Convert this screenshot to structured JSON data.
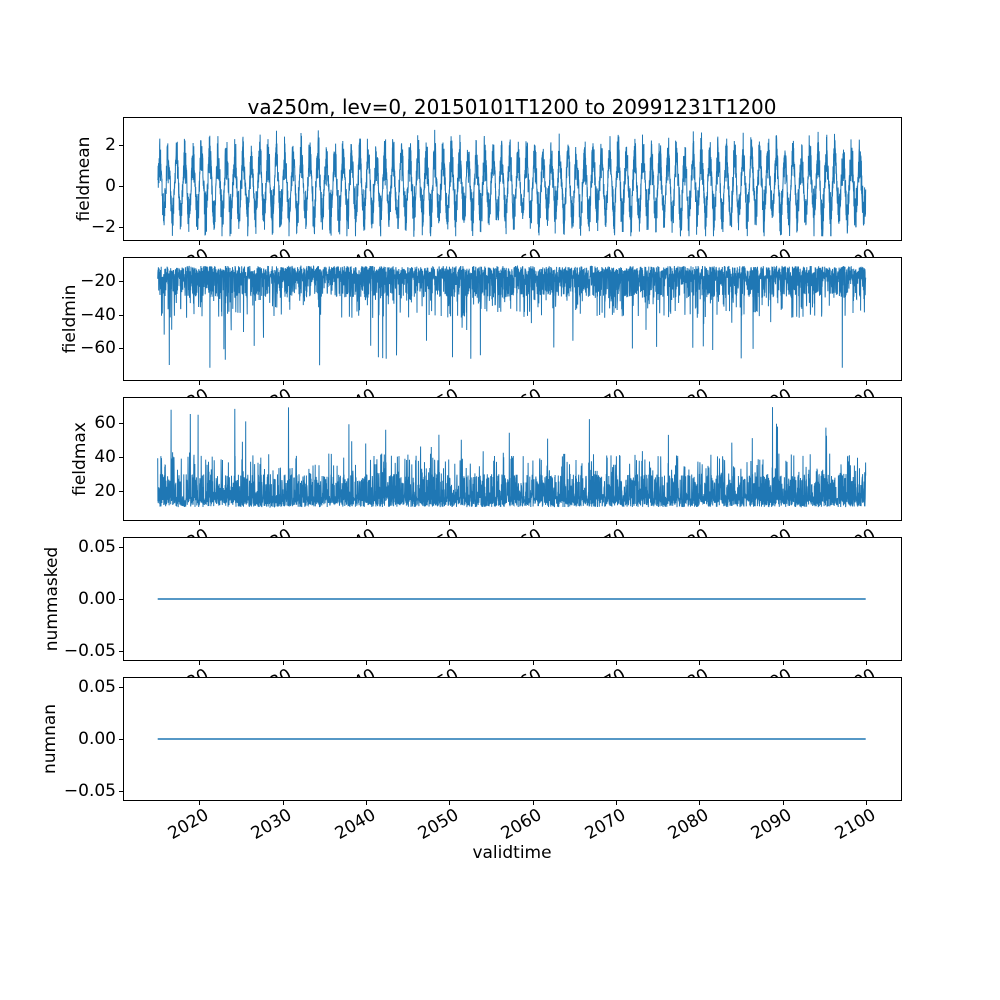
{
  "title": "va250m, lev=0, 20150101T1200 to 20991231T1200",
  "xlabel": "validtime",
  "colors": {
    "line": "#1f77b4",
    "text": "#000000",
    "axes_edge": "#000000",
    "background": "#ffffff"
  },
  "x_axis": {
    "tick_values": [
      2020,
      2030,
      2040,
      2050,
      2060,
      2070,
      2080,
      2090,
      2100
    ],
    "tick_labels": [
      "2020",
      "2030",
      "2040",
      "2050",
      "2060",
      "2070",
      "2080",
      "2090",
      "2100"
    ],
    "data_start_year": 2015.0,
    "data_end_year": 2099.96,
    "sampling": "dense (approx. daily) samples from 20150101T1200 to 20991231T1200"
  },
  "chart_data": [
    {
      "type": "line",
      "name": "fieldmean",
      "ylabel": "fieldmean",
      "ylim": [
        -2.63,
        3.32
      ],
      "ytick_values": [
        2,
        0,
        -2
      ],
      "ytick_labels": [
        "2",
        "0",
        "−2"
      ],
      "summary": "noisy series oscillating about 0 with an annual cycle; core band roughly -1.3 to +1.3, seasonal peaks reaching about +2.9 and -2.4",
      "gen": {
        "kind": "seasonal",
        "seed": 101,
        "n": 5200,
        "amp_min": 0.55,
        "amp_max": 2.3,
        "noise": 1.1,
        "clip_lo": -2.45,
        "clip_hi": 2.95
      }
    },
    {
      "type": "line",
      "name": "fieldmin",
      "ylabel": "fieldmin",
      "ylim": [
        -78.9,
        -6.3
      ],
      "ytick_values": [
        -20,
        -40,
        -60
      ],
      "ytick_labels": [
        "−20",
        "−40",
        "−60"
      ],
      "summary": "dense band between about -10 and -30 with frequent downward spikes to -40..-60 and rare extremes near -72",
      "gen": {
        "kind": "layered",
        "seed": 202,
        "dir": -1,
        "n": 4300,
        "levels": [
          {
            "p": 0.55,
            "a": -11,
            "b": -19
          },
          {
            "p": 0.93,
            "a": -16,
            "b": -30
          },
          {
            "p": 0.99,
            "a": -30,
            "b": -42
          },
          {
            "p": 1.0,
            "a": -44,
            "b": -72
          }
        ],
        "clip_lo": -72.5,
        "clip_hi": -9.5
      }
    },
    {
      "type": "line",
      "name": "fieldmax",
      "ylabel": "fieldmax",
      "ylim": [
        2.9,
        74.7
      ],
      "ytick_values": [
        60,
        40,
        20
      ],
      "ytick_labels": [
        "60",
        "40",
        "20"
      ],
      "summary": "dense band between about 10 and 30 with frequent upward spikes to 35..50 and rare extremes near 70",
      "gen": {
        "kind": "layered",
        "seed": 303,
        "dir": 1,
        "n": 4300,
        "levels": [
          {
            "p": 0.55,
            "a": 10.5,
            "b": 17
          },
          {
            "p": 0.93,
            "a": 14,
            "b": 30
          },
          {
            "p": 0.99,
            "a": 28,
            "b": 42
          },
          {
            "p": 1.0,
            "a": 42,
            "b": 70
          }
        ],
        "clip_lo": 9.5,
        "clip_hi": 71
      }
    },
    {
      "type": "line",
      "name": "nummasked",
      "ylabel": "nummasked",
      "ylim": [
        -0.059,
        0.059
      ],
      "ytick_values": [
        0.05,
        0.0,
        -0.05
      ],
      "ytick_labels": [
        "0.05",
        "0.00",
        "−0.05"
      ],
      "summary": "constant 0 for the whole period",
      "gen": {
        "kind": "constant",
        "value": 0
      }
    },
    {
      "type": "line",
      "name": "numnan",
      "ylabel": "numnan",
      "ylim": [
        -0.059,
        0.059
      ],
      "ytick_values": [
        0.05,
        0.0,
        -0.05
      ],
      "ytick_labels": [
        "0.05",
        "0.00",
        "−0.05"
      ],
      "summary": "constant 0 for the whole period",
      "gen": {
        "kind": "constant",
        "value": 0
      }
    }
  ]
}
